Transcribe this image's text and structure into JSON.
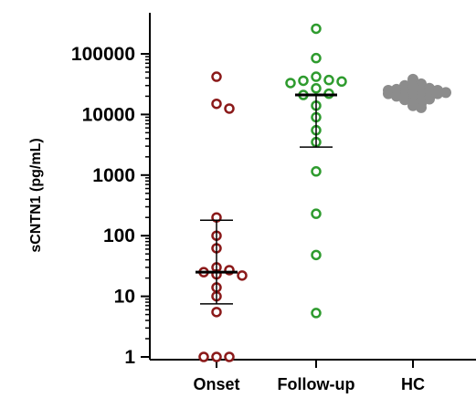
{
  "chart_data": {
    "type": "scatter",
    "title": "",
    "ylabel": "sCNTN1 (pg/mL)",
    "xlabel": "",
    "yscale": "log",
    "ylim": [
      1,
      300000
    ],
    "grid": false,
    "categories": [
      "Onset",
      "Follow-up",
      "HC"
    ],
    "y_ticks": [
      1,
      10,
      100,
      1000,
      10000,
      100000
    ],
    "y_tick_labels": [
      "1",
      "10",
      "100",
      "1000",
      "10000",
      "100000"
    ],
    "series": [
      {
        "category": "Onset",
        "color": "#8B1A1A",
        "marker": "open-circle",
        "values": [
          42000,
          15000,
          12500,
          200,
          100,
          62,
          30,
          27,
          25,
          23,
          22,
          14,
          10,
          5.5,
          1,
          1,
          1
        ],
        "summary": {
          "center": 25,
          "lower": 7.5,
          "upper": 180
        }
      },
      {
        "category": "Follow-up",
        "color": "#2E9B2E",
        "marker": "open-circle",
        "values": [
          260000,
          85000,
          42000,
          37000,
          36000,
          35000,
          33000,
          27000,
          22000,
          21000,
          14000,
          9000,
          5500,
          3500,
          1150,
          230,
          48,
          5.3
        ],
        "summary": {
          "center": 21000,
          "lower": 2900,
          "upper": null
        }
      },
      {
        "category": "HC",
        "color": "#8C8C8C",
        "marker": "filled-circle",
        "values": [
          38000,
          34000,
          32000,
          31000,
          30000,
          29000,
          28000,
          27000,
          27000,
          26000,
          26000,
          25000,
          25000,
          25000,
          24000,
          24000,
          23500,
          23000,
          23000,
          22500,
          22000,
          22000,
          21500,
          21000,
          21000,
          20500,
          20000,
          19500,
          19000,
          18500,
          18000,
          17500,
          17000,
          16000,
          15000,
          14000,
          13000
        ],
        "summary": {
          "center": 23000,
          "lower": 20000,
          "upper": 27000
        }
      }
    ]
  }
}
